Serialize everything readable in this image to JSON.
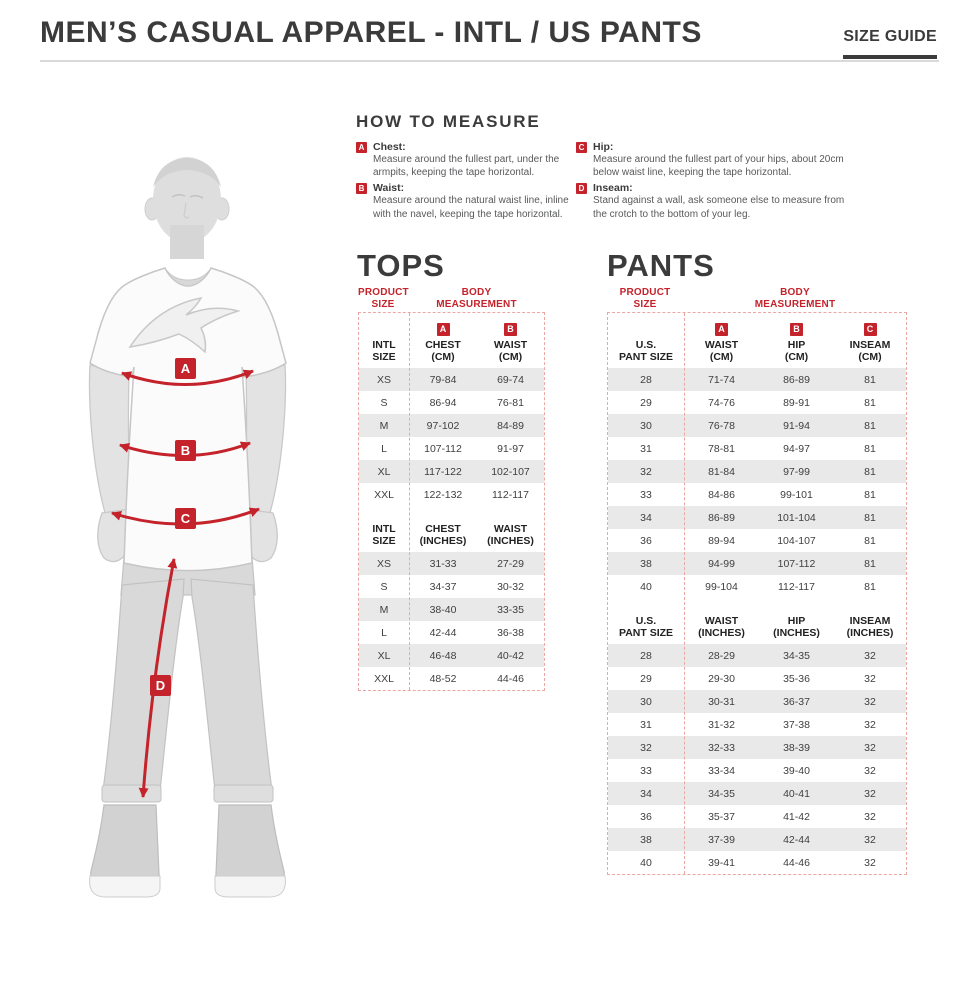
{
  "colors": {
    "accent_red": "#c4232b",
    "row_shade": "#e9e9e9",
    "dashed_border": "#eba8a2",
    "heading": "#3b3b3b"
  },
  "header": {
    "title": "MEN’S CASUAL APPAREL - INTL / US PANTS",
    "size_guide_label": "SIZE GUIDE"
  },
  "how_to_measure": {
    "heading": "HOW TO MEASURE",
    "items": [
      {
        "letter": "A",
        "label": "Chest:",
        "description": "Measure around the fullest part, under the armpits, keeping the tape horizontal."
      },
      {
        "letter": "B",
        "label": "Waist:",
        "description": "Measure around the natural waist line, inline with the navel, keeping the tape horizontal."
      },
      {
        "letter": "C",
        "label": "Hip:",
        "description": "Measure around the fullest part of your hips, about 20cm below waist line, keeping the tape horizontal."
      },
      {
        "letter": "D",
        "label": "Inseam:",
        "description": "Stand against a wall, ask someone else to measure from the crotch to the bottom of your leg."
      }
    ]
  },
  "figure": {
    "markers": [
      "A",
      "B",
      "C",
      "D"
    ]
  },
  "tops": {
    "heading": "TOPS",
    "product_size_label": "PRODUCT\nSIZE",
    "body_measurement_label": "BODY\nMEASUREMENT",
    "cm": {
      "size_label": "INTL\nSIZE",
      "col1_badge": "A",
      "col1_label": "CHEST\n(CM)",
      "col2_badge": "B",
      "col2_label": "WAIST\n(CM)",
      "rows": [
        [
          "XS",
          "79-84",
          "69-74"
        ],
        [
          "S",
          "86-94",
          "76-81"
        ],
        [
          "M",
          "97-102",
          "84-89"
        ],
        [
          "L",
          "107-112",
          "91-97"
        ],
        [
          "XL",
          "117-122",
          "102-107"
        ],
        [
          "XXL",
          "122-132",
          "112-117"
        ]
      ]
    },
    "inches": {
      "size_label": "INTL\nSIZE",
      "col1_label": "CHEST\n(INCHES)",
      "col2_label": "WAIST\n(INCHES)",
      "rows": [
        [
          "XS",
          "31-33",
          "27-29"
        ],
        [
          "S",
          "34-37",
          "30-32"
        ],
        [
          "M",
          "38-40",
          "33-35"
        ],
        [
          "L",
          "42-44",
          "36-38"
        ],
        [
          "XL",
          "46-48",
          "40-42"
        ],
        [
          "XXL",
          "48-52",
          "44-46"
        ]
      ]
    }
  },
  "pants": {
    "heading": "PANTS",
    "product_size_label": "PRODUCT\nSIZE",
    "body_measurement_label": "BODY\nMEASUREMENT",
    "cm": {
      "size_label": "U.S.\nPANT SIZE",
      "col1_badge": "A",
      "col1_label": "WAIST\n(CM)",
      "col2_badge": "B",
      "col2_label": "HIP\n(CM)",
      "col3_badge": "C",
      "col3_label": "INSEAM\n(CM)",
      "rows": [
        [
          "28",
          "71-74",
          "86-89",
          "81"
        ],
        [
          "29",
          "74-76",
          "89-91",
          "81"
        ],
        [
          "30",
          "76-78",
          "91-94",
          "81"
        ],
        [
          "31",
          "78-81",
          "94-97",
          "81"
        ],
        [
          "32",
          "81-84",
          "97-99",
          "81"
        ],
        [
          "33",
          "84-86",
          "99-101",
          "81"
        ],
        [
          "34",
          "86-89",
          "101-104",
          "81"
        ],
        [
          "36",
          "89-94",
          "104-107",
          "81"
        ],
        [
          "38",
          "94-99",
          "107-112",
          "81"
        ],
        [
          "40",
          "99-104",
          "112-117",
          "81"
        ]
      ]
    },
    "inches": {
      "size_label": "U.S.\nPANT SIZE",
      "col1_label": "WAIST\n(INCHES)",
      "col2_label": "HIP\n(INCHES)",
      "col3_label": "INSEAM\n(INCHES)",
      "rows": [
        [
          "28",
          "28-29",
          "34-35",
          "32"
        ],
        [
          "29",
          "29-30",
          "35-36",
          "32"
        ],
        [
          "30",
          "30-31",
          "36-37",
          "32"
        ],
        [
          "31",
          "31-32",
          "37-38",
          "32"
        ],
        [
          "32",
          "32-33",
          "38-39",
          "32"
        ],
        [
          "33",
          "33-34",
          "39-40",
          "32"
        ],
        [
          "34",
          "34-35",
          "40-41",
          "32"
        ],
        [
          "36",
          "35-37",
          "41-42",
          "32"
        ],
        [
          "38",
          "37-39",
          "42-44",
          "32"
        ],
        [
          "40",
          "39-41",
          "44-46",
          "32"
        ]
      ]
    }
  }
}
